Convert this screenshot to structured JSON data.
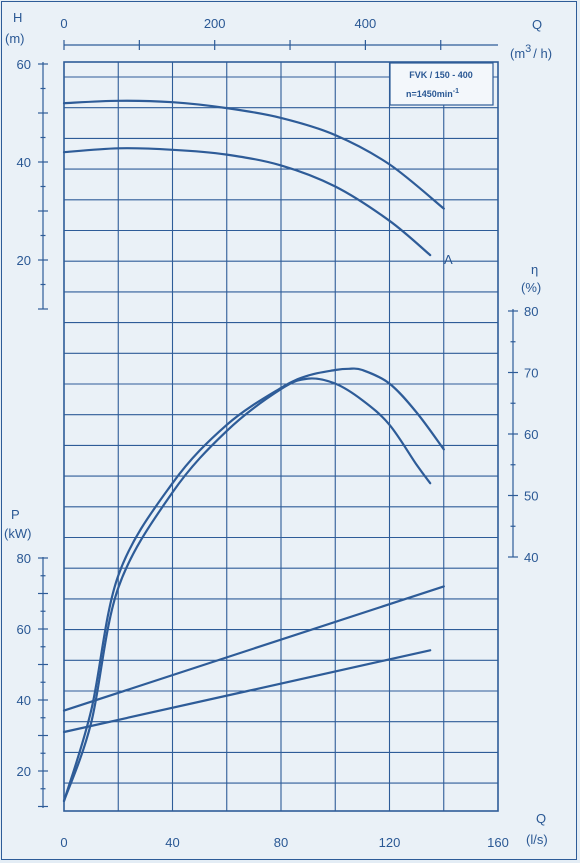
{
  "chart_data": {
    "type": "line",
    "info_box": {
      "model": "FVK / 150 - 400",
      "speed": "n=1450min",
      "speed_exp": "-1"
    },
    "curve_marker": "A",
    "axes": {
      "q_ls": {
        "label": "Q",
        "unit": "(l/s)",
        "range": [
          0,
          160
        ],
        "ticks": [
          "0",
          "40",
          "80",
          "120",
          "160"
        ]
      },
      "q_m3h": {
        "label": "Q",
        "unit_pre": "(m",
        "unit_exp": "3",
        "unit_post": "/ h)",
        "range": [
          0,
          576
        ],
        "ticks": [
          "0",
          "200",
          "400"
        ]
      },
      "head": {
        "label": "H",
        "unit": "(m)",
        "range": [
          10,
          60
        ],
        "ticks": [
          "20",
          "40",
          "60"
        ]
      },
      "efficiency": {
        "label": "η",
        "unit": "(%)",
        "range": [
          40,
          80
        ],
        "ticks": [
          "40",
          "50",
          "60",
          "70",
          "80"
        ]
      },
      "power": {
        "label": "P",
        "unit": "(kW)",
        "range": [
          10,
          80
        ],
        "ticks": [
          "20",
          "40",
          "60",
          "80"
        ]
      }
    },
    "series": [
      {
        "group": "head",
        "x": [
          0,
          20,
          40,
          60,
          80,
          100,
          120,
          140
        ],
        "y": [
          52,
          52.5,
          52.2,
          51,
          49,
          45.5,
          39.5,
          30.5
        ]
      },
      {
        "group": "head",
        "marker": "A",
        "x": [
          0,
          20,
          40,
          60,
          80,
          100,
          120,
          135
        ],
        "y": [
          42,
          42.8,
          42.5,
          41.5,
          39.3,
          35,
          28,
          21
        ]
      },
      {
        "group": "efficiency",
        "x": [
          0,
          10,
          20,
          40,
          60,
          80,
          90,
          100,
          105,
          110,
          120,
          130,
          140
        ],
        "y": [
          0,
          15,
          37,
          52,
          61.5,
          67.5,
          69.5,
          70.4,
          70.6,
          70.4,
          68.2,
          63.5,
          57.5
        ]
      },
      {
        "group": "efficiency",
        "x": [
          0,
          10,
          20,
          40,
          60,
          80,
          90,
          100,
          110,
          120,
          130,
          135
        ],
        "y": [
          0,
          13,
          35,
          50.5,
          60.5,
          67.3,
          69,
          68.2,
          65.5,
          61.5,
          55,
          52
        ]
      },
      {
        "group": "power",
        "x": [
          0,
          140
        ],
        "y": [
          37,
          72
        ]
      },
      {
        "group": "power",
        "x": [
          0,
          135
        ],
        "y": [
          31,
          54
        ]
      }
    ]
  }
}
